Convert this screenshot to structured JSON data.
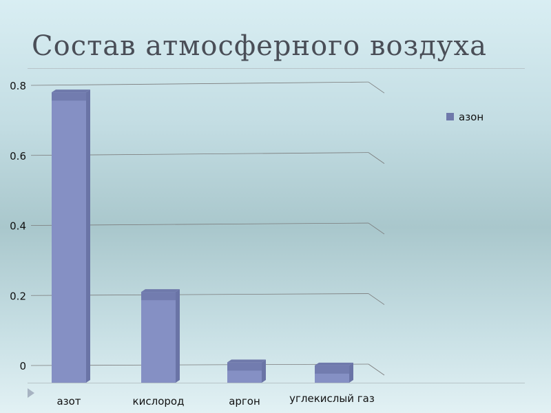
{
  "slide": {
    "title": "Состав атмосферного воздуха"
  },
  "colors": {
    "bar_front": "#8590c4",
    "bar_side": "#6a74a6",
    "bar_top": "#6f79ab",
    "grid": "#7a7a7a"
  },
  "chart_data": {
    "type": "bar",
    "categories": [
      "азот",
      "кислород",
      "аргон",
      "углекислый газ"
    ],
    "series": [
      {
        "name": "азон",
        "values": [
          0.78,
          0.21,
          0.009,
          0.0003
        ]
      }
    ],
    "ylim": [
      0,
      0.8
    ],
    "yticks": [
      "0",
      "0.2",
      "0.4",
      "0.6",
      "0.8"
    ],
    "ytick_values": [
      0,
      0.2,
      0.4,
      0.6,
      0.8
    ],
    "grid": true,
    "legend": "right",
    "style": "3d"
  }
}
